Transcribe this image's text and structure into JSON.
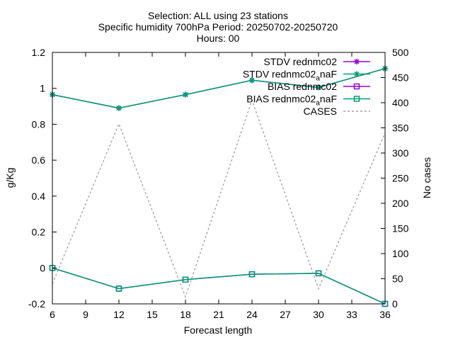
{
  "chart_data": {
    "type": "line",
    "title_lines": [
      "Selection: ALL using    23 stations",
      "Specific humidity 700hPa   Period: 20250702-20250720",
      "Hours: 00"
    ],
    "xlabel": "Forecast length",
    "ylabel": "g/Kg",
    "y2label": "No cases",
    "xlim": [
      6,
      36
    ],
    "ylim": [
      -0.2,
      1.2
    ],
    "y2lim": [
      0,
      500
    ],
    "xticks": [
      "6",
      "9",
      "12",
      "15",
      "18",
      "21",
      "24",
      "27",
      "30",
      "33",
      "36"
    ],
    "yticks": [
      "-0.2",
      "0",
      "0.2",
      "0.4",
      "0.6",
      "0.8",
      "1",
      "1.2"
    ],
    "y2ticks": [
      "0",
      "50",
      "100",
      "150",
      "200",
      "250",
      "300",
      "350",
      "400",
      "450",
      "500"
    ],
    "grid": false,
    "legend_position": "top-right",
    "series": [
      {
        "name": "STDV rednmc02",
        "label_main": "STDV rednmc02",
        "label_sub": "",
        "label_tail": "",
        "axis": "y",
        "color": "#9400d3",
        "marker": "star",
        "dash": false,
        "x": [
          6,
          12,
          18,
          24,
          30,
          36
        ],
        "y": [
          0.965,
          0.89,
          0.965,
          1.045,
          1.005,
          1.11
        ]
      },
      {
        "name": "STDV rednmc02_anaF",
        "label_main": "STDV rednmc02",
        "label_sub": "a",
        "label_tail": "naF",
        "axis": "y",
        "color": "#009e73",
        "marker": "star",
        "dash": false,
        "x": [
          6,
          12,
          18,
          24,
          30,
          36
        ],
        "y": [
          0.965,
          0.89,
          0.965,
          1.045,
          1.005,
          1.11
        ]
      },
      {
        "name": "BIAS rednmc02",
        "label_main": "BIAS rednmc02",
        "label_sub": "",
        "label_tail": "",
        "axis": "y",
        "color": "#9400d3",
        "marker": "square",
        "dash": false,
        "x": [
          6,
          12,
          18,
          24,
          30,
          36
        ],
        "y": [
          0.0,
          -0.115,
          -0.065,
          -0.035,
          -0.03,
          -0.2
        ]
      },
      {
        "name": "BIAS rednmc02_anaF",
        "label_main": "BIAS rednmc02",
        "label_sub": "a",
        "label_tail": "naF",
        "axis": "y",
        "color": "#009e73",
        "marker": "square",
        "dash": false,
        "x": [
          6,
          12,
          18,
          24,
          30,
          36
        ],
        "y": [
          0.0,
          -0.115,
          -0.065,
          -0.035,
          -0.03,
          -0.2
        ]
      },
      {
        "name": "CASES",
        "label_main": "CASES",
        "label_sub": "",
        "label_tail": "",
        "axis": "y2",
        "color": "#a0a0a0",
        "marker": "none",
        "dash": true,
        "x": [
          6,
          12,
          18,
          24,
          30,
          36
        ],
        "y": [
          40,
          358,
          14,
          405,
          30,
          340
        ]
      }
    ]
  }
}
